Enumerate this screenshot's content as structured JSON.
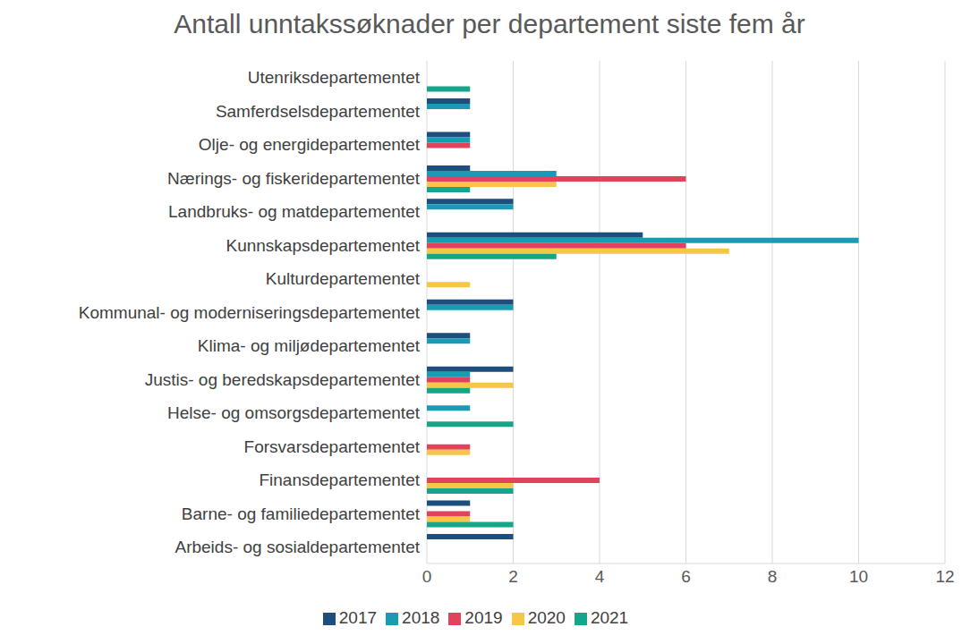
{
  "chart_data": {
    "type": "bar",
    "orientation": "horizontal",
    "title": "Antall unntakssøknader per departement siste fem år",
    "categories": [
      "Utenriksdepartementet",
      "Samferdselsdepartementet",
      "Olje- og energidepartementet",
      "Nærings- og fiskeridepartementet",
      "Landbruks- og matdepartementet",
      "Kunnskapsdepartementet",
      "Kulturdepartementet",
      "Kommunal- og moderniseringsdepartementet",
      "Klima- og miljødepartementet",
      "Justis- og beredskapsdepartementet",
      "Helse- og omsorgsdepartementet",
      "Forsvarsdepartementet",
      "Finansdepartementet",
      "Barne- og familiedepartementet",
      "Arbeids- og sosialdepartementet"
    ],
    "series": [
      {
        "name": "2017",
        "color": "#1d4e7e",
        "values": [
          0,
          1,
          1,
          1,
          2,
          5,
          0,
          2,
          1,
          2,
          0,
          0,
          0,
          1,
          2
        ]
      },
      {
        "name": "2018",
        "color": "#1a9bb3",
        "values": [
          0,
          1,
          1,
          3,
          2,
          10,
          0,
          2,
          1,
          1,
          1,
          0,
          0,
          0,
          0
        ]
      },
      {
        "name": "2019",
        "color": "#e0435a",
        "values": [
          0,
          0,
          1,
          6,
          0,
          6,
          0,
          0,
          0,
          1,
          0,
          1,
          4,
          1,
          0
        ]
      },
      {
        "name": "2020",
        "color": "#f6c648",
        "values": [
          0,
          0,
          0,
          3,
          0,
          7,
          1,
          0,
          0,
          2,
          0,
          1,
          2,
          1,
          0
        ]
      },
      {
        "name": "2021",
        "color": "#17a58a",
        "values": [
          1,
          0,
          0,
          1,
          0,
          3,
          0,
          0,
          0,
          1,
          2,
          0,
          2,
          2,
          0
        ]
      }
    ],
    "xlim": [
      0,
      12
    ],
    "xticks": [
      0,
      2,
      4,
      6,
      8,
      10,
      12
    ],
    "grid": true,
    "legend": "bottom"
  }
}
